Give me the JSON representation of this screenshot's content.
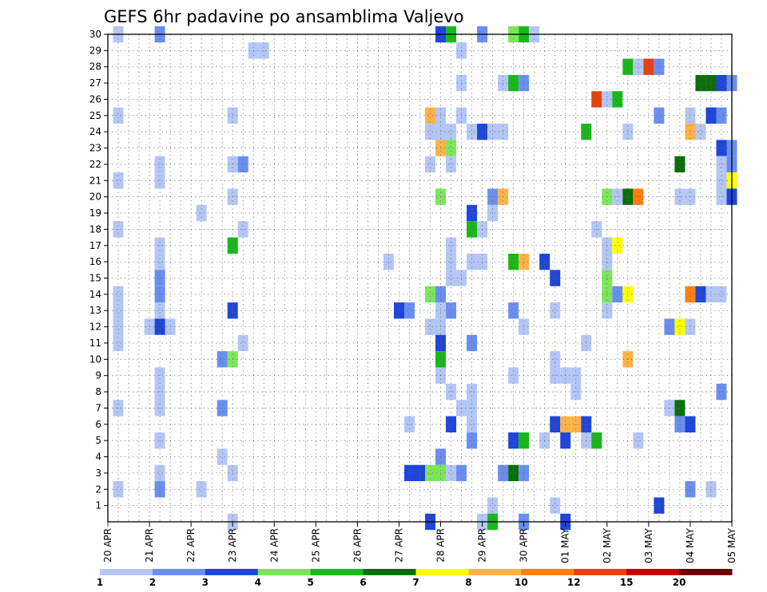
{
  "chart_data": {
    "type": "heatmap",
    "title": "GEFS 6hr padavine po ansamblima Valjevo",
    "xlabel": "",
    "ylabel": "",
    "x_tick_labels": [
      "20 APR",
      "21 APR",
      "22 APR",
      "23 APR",
      "24 APR",
      "25 APR",
      "26 APR",
      "27 APR",
      "28 APR",
      "29 APR",
      "30 APR",
      "01 MAY",
      "02 MAY",
      "03 MAY",
      "04 MAY",
      "05 MAY"
    ],
    "y_tick_labels": [
      "1",
      "2",
      "3",
      "4",
      "5",
      "6",
      "7",
      "8",
      "9",
      "10",
      "11",
      "12",
      "13",
      "14",
      "15",
      "16",
      "17",
      "18",
      "19",
      "20",
      "21",
      "22",
      "23",
      "24",
      "25",
      "26",
      "27",
      "28",
      "29",
      "30"
    ],
    "xlim_steps": [
      0,
      60
    ],
    "ylim": [
      0,
      30
    ],
    "grid": true,
    "colorbar": {
      "labels": [
        "1",
        "2",
        "3",
        "4",
        "5",
        "6",
        "7",
        "8",
        "10",
        "12",
        "15",
        "20"
      ],
      "colors": [
        "#b3c6f5",
        "#6a8ef0",
        "#1f46d9",
        "#7ce65a",
        "#18b81a",
        "#0a6e0a",
        "#ffff00",
        "#ffb347",
        "#ff7f10",
        "#e8400e",
        "#c80000",
        "#6b0000"
      ]
    },
    "series": [
      {
        "y": 30,
        "cells": [
          [
            1,
            1
          ],
          [
            5,
            2
          ],
          [
            32,
            3
          ],
          [
            33,
            5
          ],
          [
            36,
            2
          ],
          [
            39,
            4
          ],
          [
            40,
            5
          ],
          [
            41,
            1
          ]
        ]
      },
      {
        "y": 29,
        "cells": [
          [
            14,
            1
          ],
          [
            15,
            1
          ],
          [
            34,
            1
          ]
        ]
      },
      {
        "y": 28,
        "cells": [
          [
            50,
            5
          ],
          [
            51,
            1
          ],
          [
            52,
            10
          ],
          [
            53,
            2
          ]
        ]
      },
      {
        "y": 27,
        "cells": [
          [
            34,
            1
          ],
          [
            38,
            1
          ],
          [
            39,
            5
          ],
          [
            40,
            2
          ],
          [
            57,
            6
          ],
          [
            58,
            6
          ],
          [
            59,
            3
          ],
          [
            60,
            2
          ]
        ]
      },
      {
        "y": 26,
        "cells": [
          [
            47,
            10
          ],
          [
            48,
            1
          ],
          [
            49,
            5
          ]
        ]
      },
      {
        "y": 25,
        "cells": [
          [
            1,
            1
          ],
          [
            12,
            1
          ],
          [
            31,
            8
          ],
          [
            32,
            1
          ],
          [
            34,
            1
          ],
          [
            53,
            2
          ],
          [
            56,
            1
          ],
          [
            58,
            3
          ],
          [
            59,
            2
          ]
        ]
      },
      {
        "y": 24,
        "cells": [
          [
            31,
            1
          ],
          [
            32,
            1
          ],
          [
            33,
            1
          ],
          [
            35,
            1
          ],
          [
            36,
            3
          ],
          [
            37,
            1
          ],
          [
            38,
            1
          ],
          [
            46,
            5
          ],
          [
            50,
            1
          ],
          [
            56,
            8
          ],
          [
            57,
            1
          ]
        ]
      },
      {
        "y": 23,
        "cells": [
          [
            32,
            8
          ],
          [
            33,
            4
          ],
          [
            59,
            3
          ],
          [
            60,
            2
          ]
        ]
      },
      {
        "y": 22,
        "cells": [
          [
            5,
            1
          ],
          [
            12,
            1
          ],
          [
            13,
            2
          ],
          [
            31,
            1
          ],
          [
            33,
            1
          ],
          [
            55,
            6
          ],
          [
            59,
            1
          ],
          [
            60,
            2
          ]
        ]
      },
      {
        "y": 21,
        "cells": [
          [
            1,
            1
          ],
          [
            5,
            1
          ],
          [
            59,
            1
          ],
          [
            60,
            7
          ]
        ]
      },
      {
        "y": 20,
        "cells": [
          [
            12,
            1
          ],
          [
            32,
            4
          ],
          [
            37,
            2
          ],
          [
            38,
            8
          ],
          [
            48,
            4
          ],
          [
            49,
            1
          ],
          [
            50,
            6
          ],
          [
            51,
            9
          ],
          [
            55,
            1
          ],
          [
            56,
            1
          ],
          [
            59,
            1
          ],
          [
            60,
            3
          ]
        ]
      },
      {
        "y": 19,
        "cells": [
          [
            9,
            1
          ],
          [
            35,
            3
          ],
          [
            37,
            1
          ]
        ]
      },
      {
        "y": 18,
        "cells": [
          [
            1,
            1
          ],
          [
            13,
            1
          ],
          [
            35,
            5
          ],
          [
            36,
            1
          ],
          [
            47,
            1
          ]
        ]
      },
      {
        "y": 17,
        "cells": [
          [
            5,
            1
          ],
          [
            12,
            5
          ],
          [
            33,
            1
          ],
          [
            48,
            1
          ],
          [
            49,
            7
          ]
        ]
      },
      {
        "y": 16,
        "cells": [
          [
            5,
            1
          ],
          [
            27,
            1
          ],
          [
            33,
            1
          ],
          [
            35,
            1
          ],
          [
            36,
            1
          ],
          [
            39,
            5
          ],
          [
            40,
            8
          ],
          [
            42,
            3
          ],
          [
            48,
            1
          ]
        ]
      },
      {
        "y": 15,
        "cells": [
          [
            5,
            2
          ],
          [
            33,
            1
          ],
          [
            34,
            1
          ],
          [
            43,
            3
          ],
          [
            48,
            4
          ]
        ]
      },
      {
        "y": 14,
        "cells": [
          [
            1,
            1
          ],
          [
            5,
            2
          ],
          [
            31,
            4
          ],
          [
            32,
            2
          ],
          [
            48,
            4
          ],
          [
            49,
            2
          ],
          [
            50,
            7
          ],
          [
            56,
            9
          ],
          [
            57,
            3
          ],
          [
            58,
            1
          ],
          [
            59,
            1
          ]
        ]
      },
      {
        "y": 13,
        "cells": [
          [
            1,
            1
          ],
          [
            5,
            1
          ],
          [
            12,
            3
          ],
          [
            28,
            3
          ],
          [
            29,
            2
          ],
          [
            32,
            1
          ],
          [
            33,
            2
          ],
          [
            39,
            2
          ],
          [
            43,
            1
          ],
          [
            48,
            1
          ]
        ]
      },
      {
        "y": 12,
        "cells": [
          [
            1,
            1
          ],
          [
            4,
            1
          ],
          [
            5,
            3
          ],
          [
            6,
            1
          ],
          [
            31,
            1
          ],
          [
            32,
            1
          ],
          [
            40,
            1
          ],
          [
            54,
            2
          ],
          [
            55,
            7
          ],
          [
            56,
            1
          ]
        ]
      },
      {
        "y": 11,
        "cells": [
          [
            1,
            1
          ],
          [
            13,
            1
          ],
          [
            32,
            3
          ],
          [
            35,
            2
          ],
          [
            46,
            1
          ]
        ]
      },
      {
        "y": 10,
        "cells": [
          [
            11,
            2
          ],
          [
            12,
            4
          ],
          [
            32,
            5
          ],
          [
            43,
            1
          ],
          [
            50,
            8
          ]
        ]
      },
      {
        "y": 9,
        "cells": [
          [
            5,
            1
          ],
          [
            32,
            1
          ],
          [
            39,
            1
          ],
          [
            43,
            1
          ],
          [
            44,
            1
          ],
          [
            45,
            1
          ]
        ]
      },
      {
        "y": 8,
        "cells": [
          [
            5,
            1
          ],
          [
            33,
            1
          ],
          [
            35,
            1
          ],
          [
            45,
            1
          ],
          [
            59,
            2
          ]
        ]
      },
      {
        "y": 7,
        "cells": [
          [
            1,
            1
          ],
          [
            5,
            1
          ],
          [
            11,
            2
          ],
          [
            34,
            1
          ],
          [
            35,
            1
          ],
          [
            54,
            1
          ],
          [
            55,
            6
          ]
        ]
      },
      {
        "y": 6,
        "cells": [
          [
            29,
            1
          ],
          [
            33,
            3
          ],
          [
            35,
            1
          ],
          [
            43,
            3
          ],
          [
            44,
            8
          ],
          [
            45,
            8
          ],
          [
            46,
            3
          ],
          [
            55,
            2
          ],
          [
            56,
            3
          ]
        ]
      },
      {
        "y": 5,
        "cells": [
          [
            5,
            1
          ],
          [
            35,
            2
          ],
          [
            39,
            3
          ],
          [
            40,
            5
          ],
          [
            42,
            1
          ],
          [
            44,
            3
          ],
          [
            46,
            1
          ],
          [
            47,
            5
          ],
          [
            51,
            1
          ]
        ]
      },
      {
        "y": 4,
        "cells": [
          [
            11,
            1
          ],
          [
            32,
            2
          ]
        ]
      },
      {
        "y": 3,
        "cells": [
          [
            5,
            1
          ],
          [
            12,
            1
          ],
          [
            29,
            3
          ],
          [
            30,
            3
          ],
          [
            31,
            4
          ],
          [
            32,
            4
          ],
          [
            33,
            1
          ],
          [
            34,
            2
          ],
          [
            38,
            2
          ],
          [
            39,
            6
          ],
          [
            40,
            2
          ]
        ]
      },
      {
        "y": 2,
        "cells": [
          [
            1,
            1
          ],
          [
            5,
            2
          ],
          [
            9,
            1
          ],
          [
            56,
            2
          ],
          [
            58,
            1
          ]
        ]
      },
      {
        "y": 1,
        "cells": [
          [
            37,
            1
          ],
          [
            43,
            1
          ],
          [
            53,
            3
          ]
        ]
      },
      {
        "y": 0,
        "cells": [
          [
            12,
            1
          ],
          [
            31,
            3
          ],
          [
            36,
            1
          ],
          [
            37,
            5
          ],
          [
            40,
            2
          ],
          [
            44,
            3
          ]
        ]
      }
    ]
  }
}
